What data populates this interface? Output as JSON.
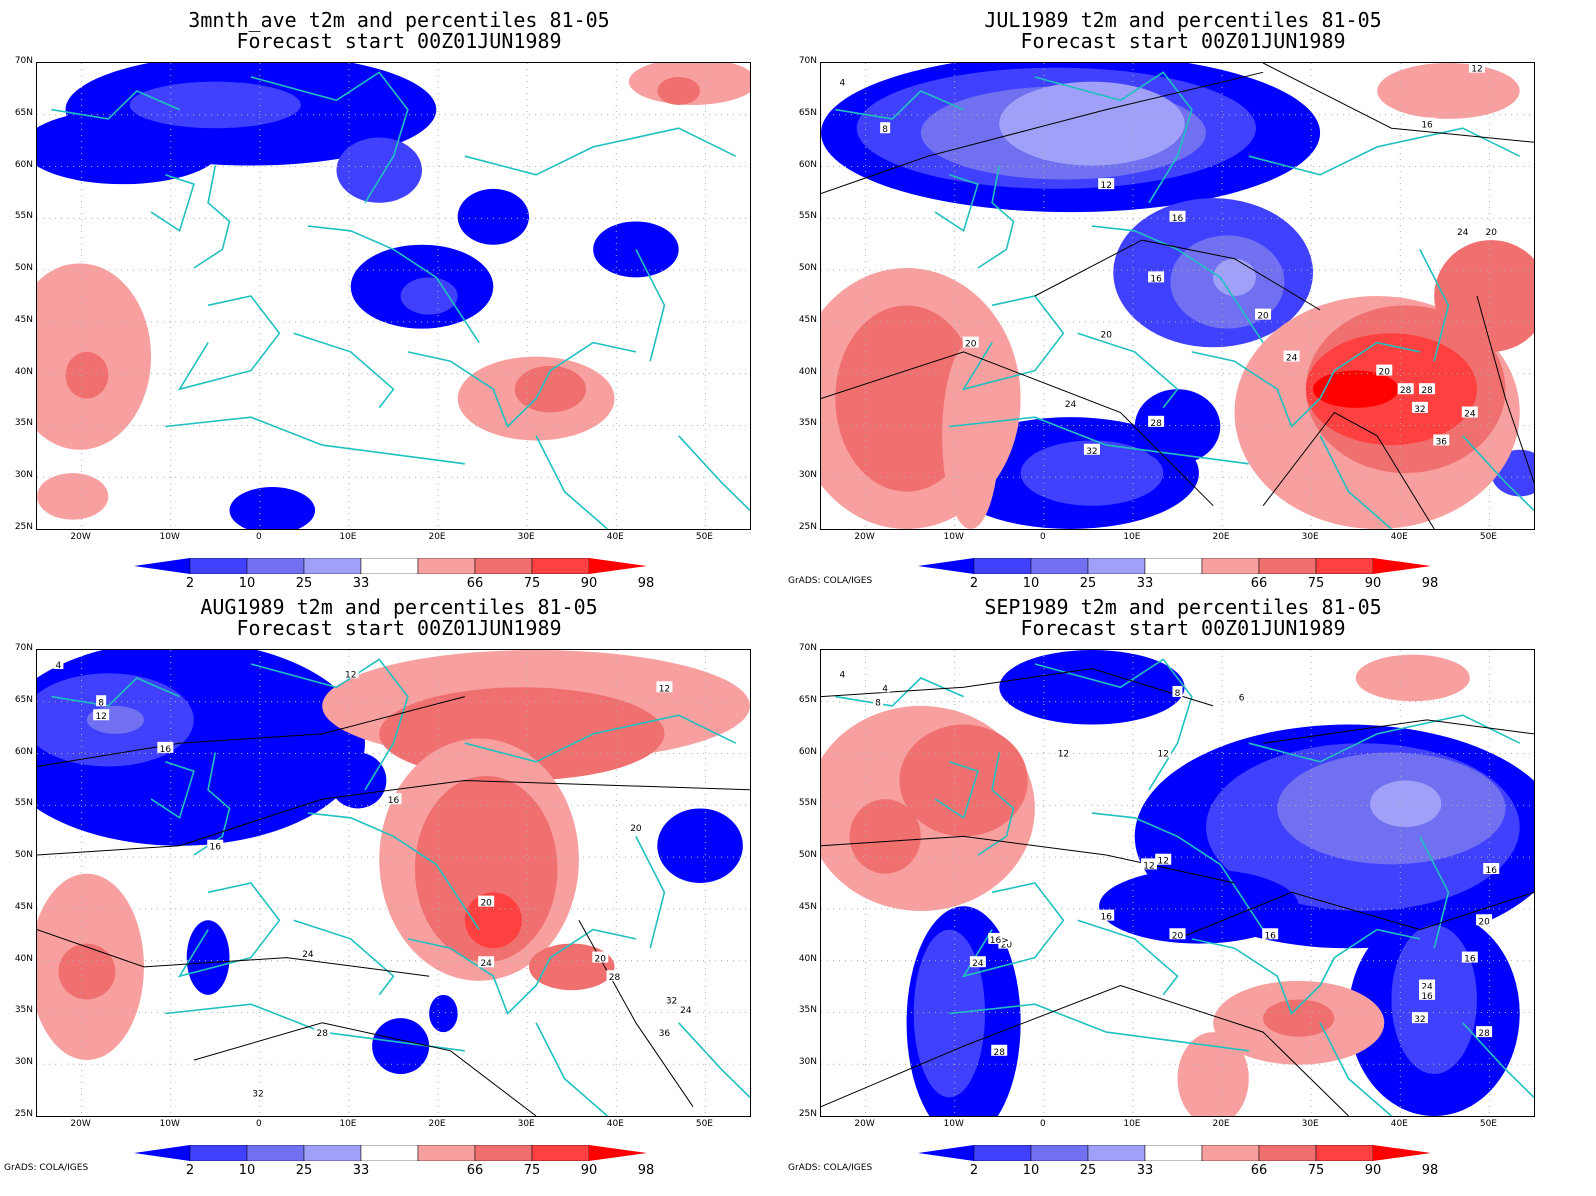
{
  "panels": [
    {
      "id": "p1",
      "title_line1": "3mnth_ave t2m and percentiles 81-05",
      "title_line2": "Forecast start 00Z01JUN1989",
      "credit": ""
    },
    {
      "id": "p2",
      "title_line1": "JUL1989 t2m and percentiles 81-05",
      "title_line2": "Forecast start 00Z01JUN1989",
      "credit": "GrADS: COLA/IGES"
    },
    {
      "id": "p3",
      "title_line1": "AUG1989 t2m and percentiles 81-05",
      "title_line2": "Forecast start 00Z01JUN1989",
      "credit": "GrADS: COLA/IGES"
    },
    {
      "id": "p4",
      "title_line1": "SEP1989 t2m and percentiles 81-05",
      "title_line2": "Forecast start 00Z01JUN1989",
      "credit": "GrADS: COLA/IGES"
    }
  ],
  "lat_labels": [
    "70N",
    "65N",
    "60N",
    "55N",
    "50N",
    "45N",
    "40N",
    "35N",
    "30N",
    "25N"
  ],
  "lon_labels": [
    "20W",
    "10W",
    "0",
    "10E",
    "20E",
    "30E",
    "40E",
    "50E"
  ],
  "colorbar": {
    "labels": [
      "2",
      "10",
      "25",
      "33",
      "66",
      "75",
      "90",
      "98"
    ],
    "colors": [
      "#0000ff",
      "#4040ff",
      "#7070f0",
      "#a0a0f8",
      "#ffffff",
      "#f8a0a0",
      "#f07070",
      "#ff4040",
      "#ff0000"
    ]
  },
  "contour_labels": {
    "p2": [
      "4",
      "8",
      "12",
      "12",
      "16",
      "16",
      "16",
      "20",
      "20",
      "20",
      "20",
      "24",
      "24",
      "24",
      "28",
      "28",
      "32",
      "32",
      "36",
      "20",
      "28",
      "24"
    ],
    "p3": [
      "4",
      "8",
      "12",
      "12",
      "12",
      "16",
      "16",
      "16",
      "20",
      "20",
      "20",
      "24",
      "24",
      "28",
      "32",
      "36",
      "24",
      "28",
      "32"
    ],
    "p4": [
      "4",
      "4",
      "8",
      "8",
      "6",
      "12",
      "12",
      "12",
      "16",
      "16",
      "16",
      "20",
      "20",
      "20",
      "24",
      "24",
      "28",
      "28",
      "32",
      "16",
      "16>",
      "12",
      "16"
    ]
  },
  "colors": {
    "land_outline": "#20c0c0",
    "contour": "#000000",
    "grid": "#b0b0b0"
  }
}
